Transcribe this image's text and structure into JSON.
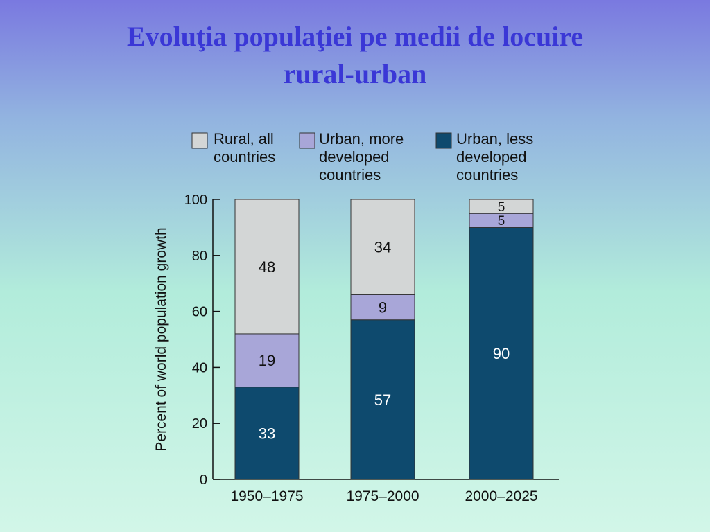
{
  "slide": {
    "title_line1": "Evoluţia populaţiei pe medii de locuire",
    "title_line2": "rural-urban"
  },
  "chart_data": {
    "type": "bar",
    "stacked": true,
    "categories": [
      "1950–1975",
      "1975–2000",
      "2000–2025"
    ],
    "series": [
      {
        "name": "Urban, less developed countries",
        "legend_lines": [
          "Urban, less",
          "developed",
          "countries"
        ],
        "values": [
          33,
          57,
          90
        ],
        "color": "#0e4a6e",
        "label_color": "#ffffff"
      },
      {
        "name": "Urban, more developed countries",
        "legend_lines": [
          "Urban, more",
          "developed",
          "countries"
        ],
        "values": [
          19,
          9,
          5
        ],
        "color": "#a8a6d8",
        "label_color": "#111111"
      },
      {
        "name": "Rural, all countries",
        "legend_lines": [
          "Rural, all",
          "countries"
        ],
        "values": [
          48,
          34,
          5
        ],
        "color": "#d3d6d6",
        "label_color": "#111111"
      }
    ],
    "ylabel": "Percent of world population growth",
    "xlabel": "",
    "ylim": [
      0,
      100
    ],
    "yticks": [
      0,
      20,
      40,
      60,
      80,
      100
    ],
    "legend_position": "top",
    "grid": false
  }
}
